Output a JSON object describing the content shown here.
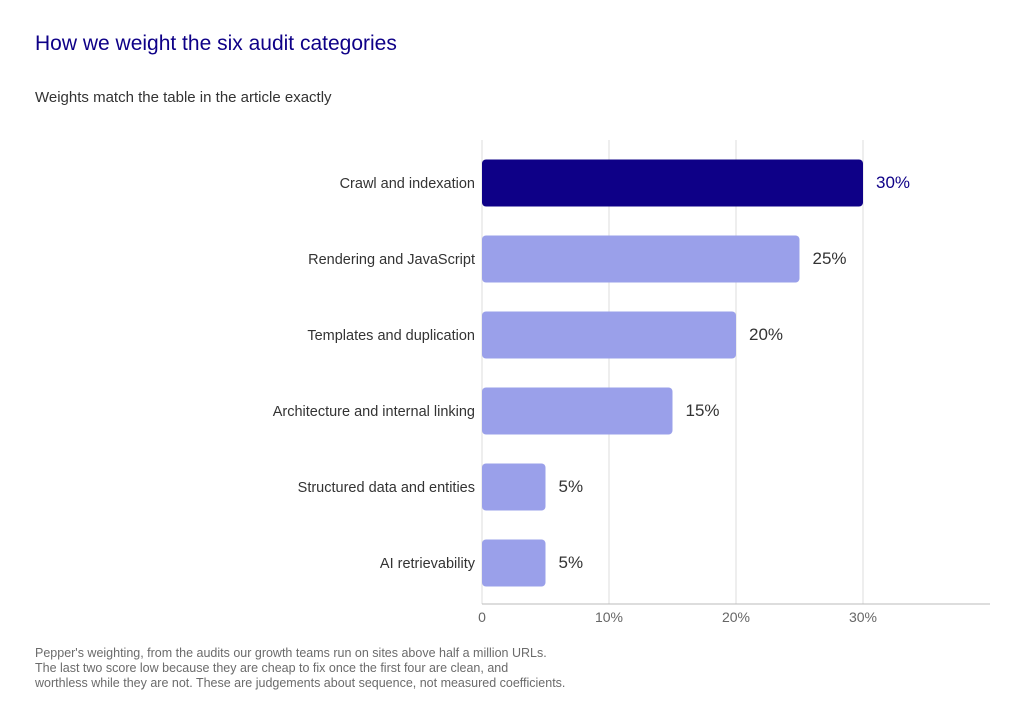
{
  "title": "How we weight the six audit categories",
  "subtitle": "Weights match the table in the article exactly",
  "footnote": [
    "Pepper's weighting, from the audits our growth teams run on sites above half a million URLs.",
    "The last two score low because they are cheap to fix once the first four are clean, and",
    "worthless while they are not. These are judgements about sequence, not measured coefficients."
  ],
  "colors": {
    "highlight": "#0e0087",
    "bar": "#9aa0ea",
    "grid": "#dddddd",
    "axis": "#bbbbbb",
    "text": "#333333",
    "tick": "#666666"
  },
  "chart_data": {
    "type": "bar",
    "orientation": "horizontal",
    "categories": [
      "Crawl and indexation",
      "Rendering and JavaScript",
      "Templates and duplication",
      "Architecture and internal linking",
      "Structured data and entities",
      "AI retrievability"
    ],
    "values": [
      30,
      25,
      20,
      15,
      5,
      5
    ],
    "value_labels": [
      "30%",
      "25%",
      "20%",
      "15%",
      "5%",
      "5%"
    ],
    "highlighted_index": 0,
    "xlim": [
      0,
      40
    ],
    "xticks": [
      0,
      10,
      20,
      30
    ],
    "xtick_labels": [
      "0",
      "10%",
      "20%",
      "30%"
    ],
    "grid": true,
    "xlabel": "",
    "ylabel": ""
  }
}
